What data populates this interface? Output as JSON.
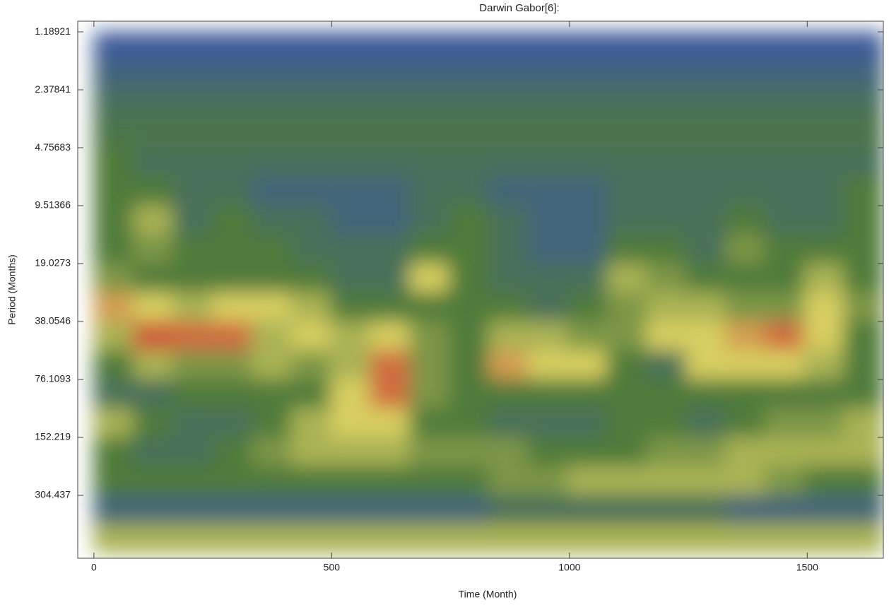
{
  "chart_data": {
    "type": "heatmap",
    "title": "Darwin Gabor[6]:",
    "xlabel": "Time (Month)",
    "ylabel": "Period (Months)",
    "xlim": [
      -34,
      1660
    ],
    "ylim": [
      1.047,
      646
    ],
    "ylog": true,
    "xticks": [
      0,
      500,
      1000,
      1500
    ],
    "yticks": [
      1.18921,
      2.37841,
      4.75683,
      9.51366,
      19.0273,
      38.0546,
      76.1093,
      152.219,
      304.437
    ],
    "x_bins": [
      0,
      83,
      166,
      249,
      332,
      415,
      498,
      581,
      664,
      747,
      830,
      913,
      996,
      1079,
      1162,
      1245,
      1328,
      1411,
      1494,
      1577,
      1660
    ],
    "y_bins": [
      1.18921,
      1.68179,
      2.37841,
      3.36359,
      4.75683,
      6.72717,
      9.51366,
      13.4543,
      19.0273,
      26.9087,
      38.0546,
      53.8174,
      76.1093,
      107.635,
      152.219,
      215.269,
      304.437,
      430.539,
      608.874
    ],
    "zlim": [
      0,
      9
    ],
    "colormap": [
      "#3d5a99",
      "#4f7a3a",
      "#d8cf62",
      "#cc3b2e"
    ],
    "z": [
      [
        0,
        0,
        0,
        0,
        0,
        0,
        0,
        0,
        0,
        0,
        0,
        0,
        0,
        0,
        0,
        0,
        0,
        0,
        0,
        0
      ],
      [
        1,
        1,
        1,
        1,
        1,
        1,
        1,
        1,
        1,
        1,
        1,
        1,
        1,
        1,
        1,
        1,
        1,
        1,
        1,
        1
      ],
      [
        2,
        2,
        2,
        2,
        2,
        2,
        2,
        2,
        2,
        2,
        2,
        2,
        2,
        2,
        2,
        2,
        2,
        2,
        2,
        2
      ],
      [
        2.5,
        2.5,
        2.5,
        2.5,
        2.5,
        2.5,
        2.5,
        2.5,
        2.5,
        2.5,
        2.5,
        2.5,
        2.5,
        2.5,
        2.5,
        2.5,
        2.5,
        2.5,
        2.5,
        2.5
      ],
      [
        3,
        2,
        2,
        2,
        2,
        2,
        2,
        2,
        2,
        2,
        2,
        2,
        2,
        2,
        2,
        2,
        2,
        2,
        2,
        2
      ],
      [
        3,
        3,
        2,
        2,
        1,
        1,
        1,
        1,
        2,
        2,
        1,
        1,
        1,
        2,
        2,
        2,
        2,
        2,
        2,
        3
      ],
      [
        3,
        5,
        2,
        3,
        2,
        2,
        1,
        1,
        2,
        3,
        2,
        1,
        1,
        2,
        2,
        2,
        3,
        2,
        2,
        3
      ],
      [
        3,
        4,
        3,
        3,
        3,
        2,
        2,
        2,
        3,
        3,
        2,
        1,
        1,
        3,
        3,
        2,
        4,
        3,
        3,
        3
      ],
      [
        4,
        3,
        3,
        3,
        3,
        3,
        2,
        2,
        6,
        3,
        2,
        2,
        2,
        5,
        4,
        3,
        3,
        3,
        5,
        3
      ],
      [
        7,
        6,
        5,
        6,
        6,
        5,
        3,
        3,
        3,
        3,
        3,
        2,
        3,
        4,
        5,
        5,
        4,
        4,
        6,
        4
      ],
      [
        5,
        8.5,
        8,
        8,
        5,
        6,
        5,
        6,
        4,
        3,
        5,
        5,
        4,
        4,
        6,
        6,
        7,
        8,
        6,
        3
      ],
      [
        3,
        5,
        4,
        4,
        5,
        4,
        5,
        8,
        4,
        3,
        7,
        6,
        6,
        3,
        2,
        6,
        6,
        6,
        5,
        3
      ],
      [
        2,
        2,
        3,
        3,
        3,
        3,
        6,
        8,
        4,
        3,
        3,
        3,
        3,
        3,
        3,
        3,
        3,
        3,
        3,
        3
      ],
      [
        5,
        3,
        2,
        2,
        3,
        5,
        6,
        6,
        3,
        3,
        2,
        2,
        2,
        3,
        3,
        2,
        3,
        4,
        4,
        5
      ],
      [
        3,
        2,
        2,
        3,
        4,
        5,
        5,
        5,
        4,
        4,
        4,
        3,
        3,
        3,
        4,
        4,
        5,
        5,
        5,
        5
      ],
      [
        3,
        3,
        3,
        3,
        3,
        3,
        3,
        3,
        3,
        3,
        4,
        4,
        5,
        5,
        5,
        5,
        5,
        4,
        3,
        3
      ],
      [
        1,
        1,
        1,
        1,
        1,
        1,
        1,
        1,
        1,
        1,
        2,
        2,
        2,
        2,
        2,
        2,
        1,
        1,
        1,
        1
      ],
      [
        5,
        5,
        5,
        5,
        5,
        5,
        5,
        5,
        5,
        5,
        5,
        5,
        5,
        5,
        5,
        5,
        5,
        5,
        5,
        5
      ]
    ]
  }
}
